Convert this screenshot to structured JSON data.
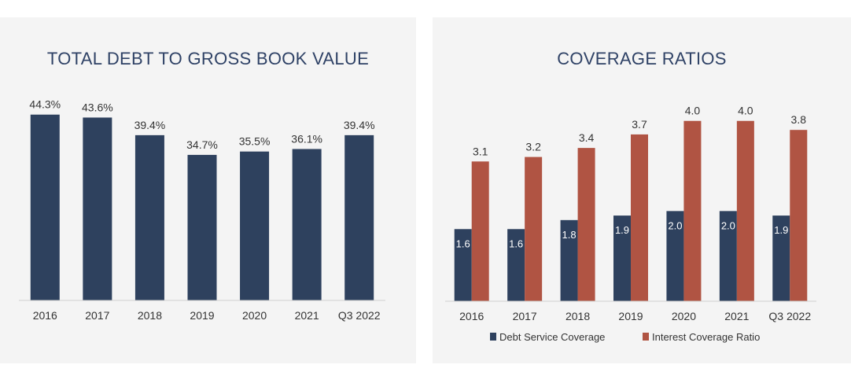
{
  "colors": {
    "navy": "#2e415e",
    "rust": "#b05443",
    "axis": "#cfcfcf",
    "text": "#333333",
    "title": "#2f4266"
  },
  "chart_data": [
    {
      "type": "bar",
      "title": "TOTAL DEBT TO GROSS BOOK VALUE",
      "categories": [
        "2016",
        "2017",
        "2018",
        "2019",
        "2020",
        "2021",
        "Q3 2022"
      ],
      "values": [
        44.3,
        43.6,
        39.4,
        34.7,
        35.5,
        36.1,
        39.4
      ],
      "value_labels": [
        "44.3%",
        "43.6%",
        "39.4%",
        "34.7%",
        "35.5%",
        "36.1%",
        "39.4%"
      ],
      "xlabel": "",
      "ylabel": "",
      "ylim": [
        0,
        45
      ],
      "grid": false,
      "legend": "none"
    },
    {
      "type": "bar",
      "title": "COVERAGE RATIOS",
      "categories": [
        "2016",
        "2017",
        "2018",
        "2019",
        "2020",
        "2021",
        "Q3 2022"
      ],
      "series": [
        {
          "name": "Debt Service Coverage",
          "values": [
            1.6,
            1.6,
            1.8,
            1.9,
            2.0,
            2.0,
            1.9
          ],
          "value_labels": [
            "1.6",
            "1.6",
            "1.8",
            "1.9",
            "2.0",
            "2.0",
            "1.9"
          ]
        },
        {
          "name": "Interest Coverage Ratio",
          "values": [
            3.1,
            3.2,
            3.4,
            3.7,
            4.0,
            4.0,
            3.8
          ],
          "value_labels": [
            "3.1",
            "3.2",
            "3.4",
            "3.7",
            "4.0",
            "4.0",
            "3.8"
          ]
        }
      ],
      "xlabel": "",
      "ylabel": "",
      "ylim": [
        0,
        4.1
      ],
      "grid": false,
      "legend": "bottom-center"
    }
  ]
}
